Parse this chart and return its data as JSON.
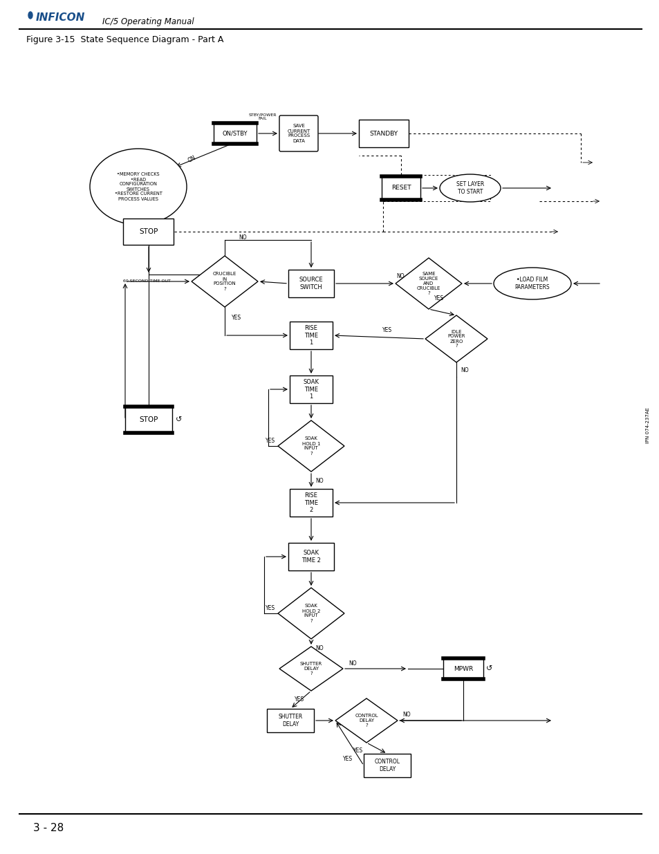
{
  "title": "Figure 3-15  State Sequence Diagram - Part A",
  "header_text": "IC/5 Operating Manual",
  "page_number": "3 - 28",
  "side_text": "IPN 074-237AE",
  "bg_color": "#ffffff",
  "fig_width": 9.54,
  "fig_height": 12.35
}
